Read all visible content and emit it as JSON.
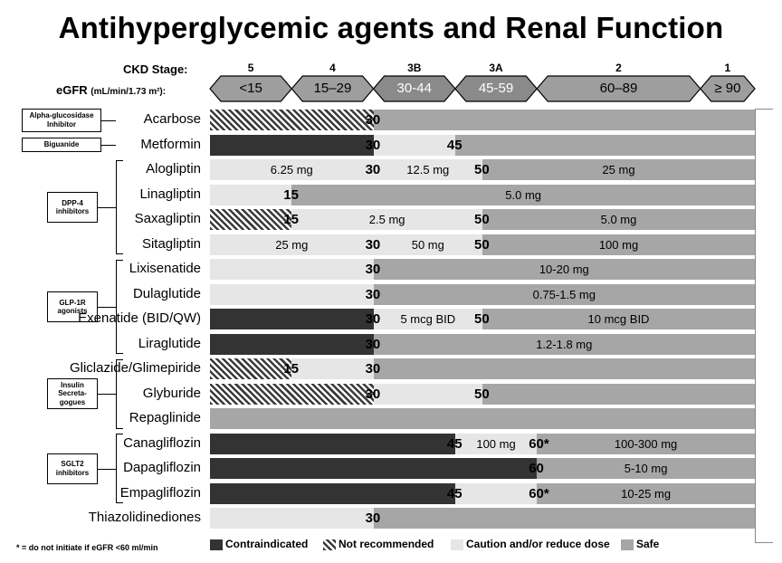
{
  "title": "Antihyperglycemic agents and Renal Function",
  "ckd_label": "CKD Stage:",
  "egfr_label": "eGFR",
  "egfr_unit": "(mL/min/1.73 m²):",
  "stages": [
    {
      "stage": "5",
      "range": "<15",
      "lo": 0,
      "hi": 15
    },
    {
      "stage": "4",
      "range": "15–29",
      "lo": 15,
      "hi": 30
    },
    {
      "stage": "3B",
      "range": "30-44",
      "lo": 30,
      "hi": 45
    },
    {
      "stage": "3A",
      "range": "45-59",
      "lo": 45,
      "hi": 60
    },
    {
      "stage": "2",
      "range": "60–89",
      "lo": 60,
      "hi": 90
    },
    {
      "stage": "1",
      "range": "≥ 90",
      "lo": 90,
      "hi": 100
    }
  ],
  "classes": [
    {
      "name": "Alpha-glucosidase Inhibitor",
      "first": 0,
      "last": 0
    },
    {
      "name": "Biguanide",
      "first": 1,
      "last": 1
    },
    {
      "name": "DPP-4 inhibitors",
      "first": 2,
      "last": 5
    },
    {
      "name": "GLP-1R agonists",
      "first": 6,
      "last": 9
    },
    {
      "name": "Insulin Secreta-gogues",
      "first": 10,
      "last": 12
    },
    {
      "name": "SGLT2 inhibitors",
      "first": 13,
      "last": 15
    }
  ],
  "chart_data": {
    "type": "bar",
    "title": "Antihyperglycemic agents and Renal Function",
    "xlabel": "eGFR (mL/min/1.73 m²)",
    "xlim": [
      0,
      100
    ],
    "legend_placement": "bottom",
    "categories": [
      "Acarbose",
      "Metformin",
      "Alogliptin",
      "Linagliptin",
      "Saxagliptin",
      "Sitagliptin",
      "Lixisenatide",
      "Dulaglutide",
      "Exenatide (BID/QW)",
      "Liraglutide",
      "Gliclazide/Glimepiride",
      "Glyburide",
      "Repaglinide",
      "Canagliflozin",
      "Dapagliflozin",
      "Empagliflozin",
      "Thiazolidinediones"
    ],
    "legend": [
      {
        "key": "contra",
        "label": "Contraindicated"
      },
      {
        "key": "notrec",
        "label": "Not recommended"
      },
      {
        "key": "caution",
        "label": "Caution and/or reduce dose"
      },
      {
        "key": "safe",
        "label": "Safe"
      }
    ],
    "colors": {
      "contra": "#333333",
      "notrec": "#3a3a3a",
      "caution": "#e6e6e6",
      "safe": "#a6a6a6"
    },
    "rows": [
      {
        "drug": "Acarbose",
        "segments": [
          {
            "from": 0,
            "to": 30,
            "status": "notrec"
          },
          {
            "from": 30,
            "to": 100,
            "status": "safe"
          }
        ],
        "thresholds": [
          {
            "at": 30,
            "text": "30"
          }
        ],
        "doses": []
      },
      {
        "drug": "Metformin",
        "segments": [
          {
            "from": 0,
            "to": 30,
            "status": "contra"
          },
          {
            "from": 30,
            "to": 45,
            "status": "caution"
          },
          {
            "from": 45,
            "to": 100,
            "status": "safe"
          }
        ],
        "thresholds": [
          {
            "at": 30,
            "text": "30"
          },
          {
            "at": 45,
            "text": "45"
          }
        ],
        "doses": []
      },
      {
        "drug": "Alogliptin",
        "segments": [
          {
            "from": 0,
            "to": 50,
            "status": "caution"
          },
          {
            "from": 50,
            "to": 100,
            "status": "safe"
          }
        ],
        "thresholds": [
          {
            "at": 30,
            "text": "30"
          },
          {
            "at": 50,
            "text": "50"
          }
        ],
        "doses": [
          {
            "from": 0,
            "to": 30,
            "text": "6.25 mg"
          },
          {
            "from": 30,
            "to": 50,
            "text": "12.5 mg"
          },
          {
            "from": 50,
            "to": 100,
            "text": "25 mg"
          }
        ]
      },
      {
        "drug": "Linagliptin",
        "segments": [
          {
            "from": 0,
            "to": 15,
            "status": "caution"
          },
          {
            "from": 15,
            "to": 100,
            "status": "safe"
          }
        ],
        "thresholds": [
          {
            "at": 15,
            "text": "15"
          }
        ],
        "doses": [
          {
            "from": 15,
            "to": 100,
            "text": "5.0 mg"
          }
        ]
      },
      {
        "drug": "Saxagliptin",
        "segments": [
          {
            "from": 0,
            "to": 15,
            "status": "notrec"
          },
          {
            "from": 15,
            "to": 50,
            "status": "caution"
          },
          {
            "from": 50,
            "to": 100,
            "status": "safe"
          }
        ],
        "thresholds": [
          {
            "at": 15,
            "text": "15"
          },
          {
            "at": 50,
            "text": "50"
          }
        ],
        "doses": [
          {
            "from": 15,
            "to": 50,
            "text": "2.5 mg"
          },
          {
            "from": 50,
            "to": 100,
            "text": "5.0 mg"
          }
        ]
      },
      {
        "drug": "Sitagliptin",
        "segments": [
          {
            "from": 0,
            "to": 50,
            "status": "caution"
          },
          {
            "from": 50,
            "to": 100,
            "status": "safe"
          }
        ],
        "thresholds": [
          {
            "at": 30,
            "text": "30"
          },
          {
            "at": 50,
            "text": "50"
          }
        ],
        "doses": [
          {
            "from": 0,
            "to": 30,
            "text": "25 mg"
          },
          {
            "from": 30,
            "to": 50,
            "text": "50 mg"
          },
          {
            "from": 50,
            "to": 100,
            "text": "100 mg"
          }
        ]
      },
      {
        "drug": "Lixisenatide",
        "segments": [
          {
            "from": 0,
            "to": 30,
            "status": "caution"
          },
          {
            "from": 30,
            "to": 100,
            "status": "safe"
          }
        ],
        "thresholds": [
          {
            "at": 30,
            "text": "30"
          }
        ],
        "doses": [
          {
            "from": 30,
            "to": 100,
            "text": "10-20 mg"
          }
        ]
      },
      {
        "drug": "Dulaglutide",
        "segments": [
          {
            "from": 0,
            "to": 30,
            "status": "caution"
          },
          {
            "from": 30,
            "to": 100,
            "status": "safe"
          }
        ],
        "thresholds": [
          {
            "at": 30,
            "text": "30"
          }
        ],
        "doses": [
          {
            "from": 30,
            "to": 100,
            "text": "0.75-1.5 mg"
          }
        ]
      },
      {
        "drug": "Exenatide (BID/QW)",
        "segments": [
          {
            "from": 0,
            "to": 30,
            "status": "contra"
          },
          {
            "from": 30,
            "to": 50,
            "status": "caution"
          },
          {
            "from": 50,
            "to": 100,
            "status": "safe"
          }
        ],
        "thresholds": [
          {
            "at": 30,
            "text": "30"
          },
          {
            "at": 50,
            "text": "50"
          }
        ],
        "doses": [
          {
            "from": 30,
            "to": 50,
            "text": "5 mcg BID"
          },
          {
            "from": 50,
            "to": 100,
            "text": "10 mcg BID"
          }
        ]
      },
      {
        "drug": "Liraglutide",
        "segments": [
          {
            "from": 0,
            "to": 30,
            "status": "contra"
          },
          {
            "from": 30,
            "to": 100,
            "status": "safe"
          }
        ],
        "thresholds": [
          {
            "at": 30,
            "text": "30"
          }
        ],
        "doses": [
          {
            "from": 30,
            "to": 100,
            "text": "1.2-1.8 mg"
          }
        ]
      },
      {
        "drug": "Gliclazide/Glimepiride",
        "segments": [
          {
            "from": 0,
            "to": 15,
            "status": "notrec"
          },
          {
            "from": 15,
            "to": 30,
            "status": "caution"
          },
          {
            "from": 30,
            "to": 100,
            "status": "safe"
          }
        ],
        "thresholds": [
          {
            "at": 15,
            "text": "15"
          },
          {
            "at": 30,
            "text": "30"
          }
        ],
        "doses": []
      },
      {
        "drug": "Glyburide",
        "segments": [
          {
            "from": 0,
            "to": 30,
            "status": "notrec"
          },
          {
            "from": 30,
            "to": 50,
            "status": "caution"
          },
          {
            "from": 50,
            "to": 100,
            "status": "safe"
          }
        ],
        "thresholds": [
          {
            "at": 30,
            "text": "30"
          },
          {
            "at": 50,
            "text": "50"
          }
        ],
        "doses": []
      },
      {
        "drug": "Repaglinide",
        "segments": [
          {
            "from": 0,
            "to": 100,
            "status": "safe"
          }
        ],
        "thresholds": [],
        "doses": []
      },
      {
        "drug": "Canagliflozin",
        "segments": [
          {
            "from": 0,
            "to": 45,
            "status": "contra"
          },
          {
            "from": 45,
            "to": 60,
            "status": "caution"
          },
          {
            "from": 60,
            "to": 100,
            "status": "safe"
          }
        ],
        "thresholds": [
          {
            "at": 45,
            "text": "45"
          },
          {
            "at": 60,
            "text": "60*"
          }
        ],
        "doses": [
          {
            "from": 45,
            "to": 60,
            "text": "100 mg"
          },
          {
            "from": 60,
            "to": 100,
            "text": "100-300 mg"
          }
        ]
      },
      {
        "drug": "Dapagliflozin",
        "segments": [
          {
            "from": 0,
            "to": 60,
            "status": "contra"
          },
          {
            "from": 60,
            "to": 100,
            "status": "safe"
          }
        ],
        "thresholds": [
          {
            "at": 60,
            "text": "60"
          }
        ],
        "doses": [
          {
            "from": 60,
            "to": 100,
            "text": "5-10 mg"
          }
        ]
      },
      {
        "drug": "Empagliflozin",
        "segments": [
          {
            "from": 0,
            "to": 45,
            "status": "contra"
          },
          {
            "from": 45,
            "to": 60,
            "status": "caution"
          },
          {
            "from": 60,
            "to": 100,
            "status": "safe"
          }
        ],
        "thresholds": [
          {
            "at": 45,
            "text": "45"
          },
          {
            "at": 60,
            "text": "60*"
          }
        ],
        "doses": [
          {
            "from": 60,
            "to": 100,
            "text": "10-25 mg"
          }
        ]
      },
      {
        "drug": "Thiazolidinediones",
        "segments": [
          {
            "from": 0,
            "to": 30,
            "status": "caution"
          },
          {
            "from": 30,
            "to": 100,
            "status": "safe"
          }
        ],
        "thresholds": [
          {
            "at": 30,
            "text": "30"
          }
        ],
        "doses": []
      }
    ]
  },
  "footnote": "* = do not initiate if eGFR <60 ml/min"
}
